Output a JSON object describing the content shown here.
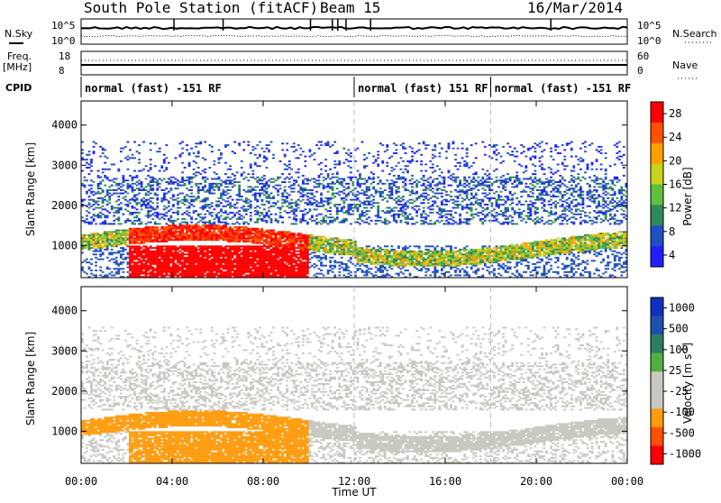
{
  "header": {
    "station": "South Pole Station (fitACF)",
    "beam": "Beam 15",
    "date": "16/Mar/2014"
  },
  "top_panels": {
    "nsky_label": "N.Sky",
    "nsearch_label": "N.Search",
    "freq_label_1": "Freq.",
    "freq_label_2": "[MHz]",
    "nave_label": "Nave",
    "cpid_label": "CPID",
    "nsky_ticks": [
      "10^5",
      "10^0"
    ],
    "nsearch_ticks": [
      "10^5",
      "10^0"
    ],
    "freq_ticks": [
      "18",
      "8"
    ],
    "nave_ticks": [
      "60",
      "0"
    ]
  },
  "cpid_segments": [
    {
      "label": "normal (fast) -151 RF",
      "start_hour": 0
    },
    {
      "label": "normal (fast) 151 RF",
      "start_hour": 12
    },
    {
      "label": "normal (fast) -151 RF",
      "start_hour": 18
    }
  ],
  "colors": {
    "power": [
      "#1f1fff",
      "#2050c0",
      "#2e8a5a",
      "#5fbf3f",
      "#c8d020",
      "#ffa000",
      "#ff5000",
      "#ff0000"
    ],
    "velocity": [
      "#ff0000",
      "#ff5000",
      "#ff9c10",
      "#c8c8c0",
      "#c8c8c0",
      "#50b040",
      "#2a8060",
      "#1f50b0",
      "#1030c0"
    ]
  },
  "chart_data": [
    {
      "type": "heatmap",
      "quantity": "Power",
      "ylabel": "Slant Range [km]",
      "ylim": [
        200,
        4600
      ],
      "yticks": [
        1000,
        2000,
        3000,
        4000
      ],
      "x_range_hours": [
        0,
        24
      ],
      "colorbar_label": "Power [dB]",
      "colorbar_ticks": [
        "28",
        "24",
        "20",
        "16",
        "12",
        "8",
        "4"
      ],
      "colorbar_range": [
        0,
        32
      ]
    },
    {
      "type": "heatmap",
      "quantity": "Velocity",
      "ylabel": "Slant Range [km]",
      "ylim": [
        200,
        4600
      ],
      "yticks": [
        1000,
        2000,
        3000,
        4000
      ],
      "x_range_hours": [
        0,
        24
      ],
      "xticks": [
        "00:00",
        "04:00",
        "08:00",
        "12:00",
        "16:00",
        "20:00",
        "00:00"
      ],
      "xlabel": "Time UT",
      "colorbar_label": "Velocity [m s",
      "colorbar_label_sup": "-1",
      "colorbar_label_end": "]",
      "colorbar_ticks": [
        "1000",
        "500",
        "100",
        "25",
        "-25",
        "-100",
        "-500",
        "-1000"
      ]
    }
  ]
}
